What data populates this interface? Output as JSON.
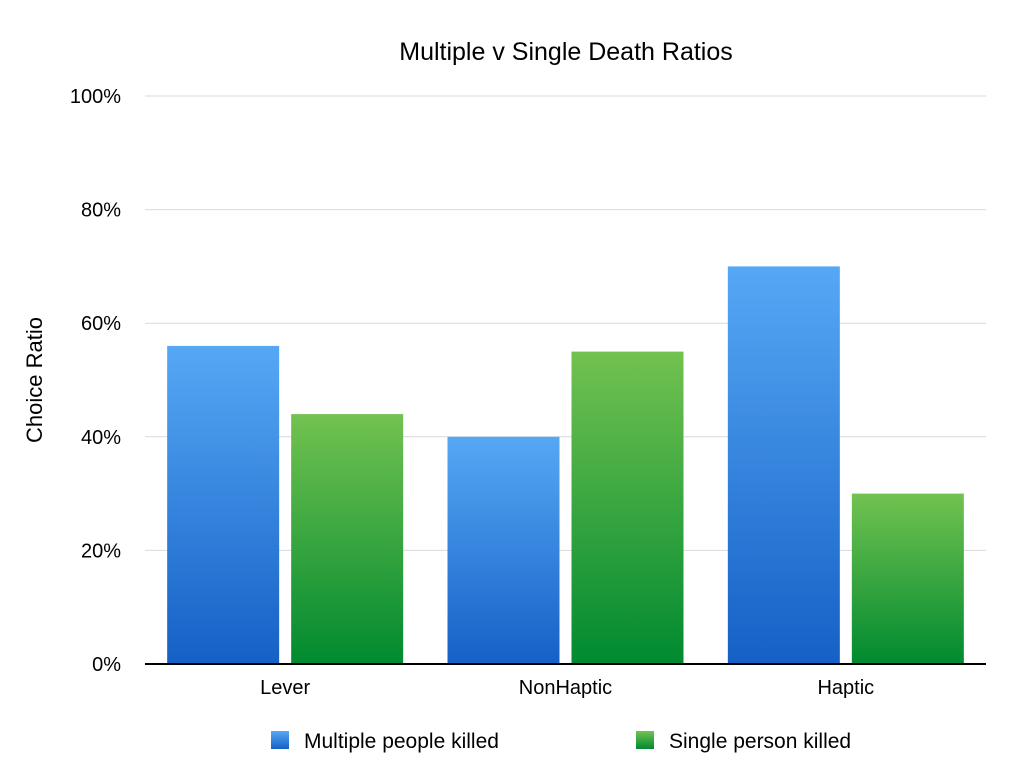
{
  "chart_data": {
    "type": "bar",
    "title": "Multiple v Single Death Ratios",
    "xlabel": "",
    "ylabel": "Choice Ratio",
    "categories": [
      "Lever",
      "NonHaptic",
      "Haptic"
    ],
    "y_ticks": [
      "0%",
      "20%",
      "40%",
      "60%",
      "80%",
      "100%"
    ],
    "ylim": [
      0,
      100
    ],
    "grid": true,
    "legend_position": "bottom",
    "series": [
      {
        "name": "Multiple people killed",
        "values": [
          56,
          40,
          70
        ],
        "color_top": "#56a8f5",
        "color_bottom": "#1560c6"
      },
      {
        "name": "Single person killed",
        "values": [
          44,
          55,
          30
        ],
        "color_top": "#72c250",
        "color_bottom": "#008a30"
      }
    ]
  }
}
